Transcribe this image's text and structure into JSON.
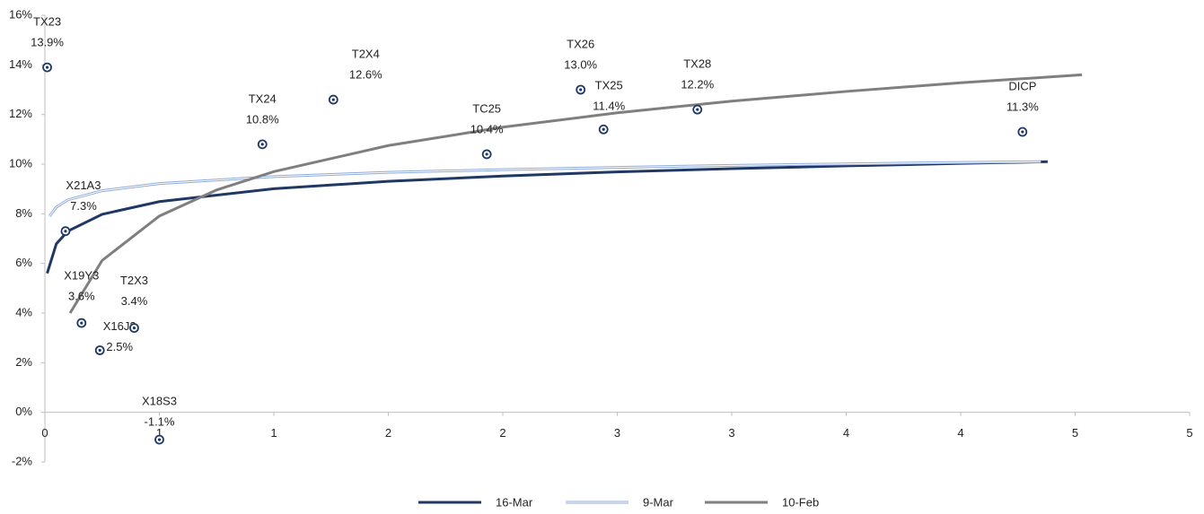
{
  "chart_data": {
    "type": "scatter",
    "xlim": [
      0,
      5
    ],
    "xticks": [
      0,
      {
        "value": 0.5,
        "label": "1"
      },
      1,
      {
        "value": 1.5,
        "label": "2"
      },
      2,
      {
        "value": 2.5,
        "label": "3"
      },
      3,
      {
        "value": 3.5,
        "label": "4"
      },
      4,
      {
        "value": 4.5,
        "label": "5"
      },
      5
    ],
    "ylim": [
      -2,
      16
    ],
    "yticks": [
      {
        "value": -2,
        "label": "-2%"
      },
      {
        "value": 0,
        "label": "0%"
      },
      {
        "value": 2,
        "label": "2%"
      },
      {
        "value": 4,
        "label": "4%"
      },
      {
        "value": 6,
        "label": "6%"
      },
      {
        "value": 8,
        "label": "8%"
      },
      {
        "value": 10,
        "label": "10%"
      },
      {
        "value": 12,
        "label": "12%"
      },
      {
        "value": 14,
        "label": "14%"
      },
      {
        "value": 16,
        "label": "16%"
      }
    ],
    "point_labels": [
      "TX23",
      "X21A3",
      "X19Y3",
      "X16J3",
      "T2X3",
      "X18S3",
      "TX24",
      "T2X4",
      "TC25",
      "TX26",
      "TX25",
      "TX28",
      "DICP"
    ],
    "point_x": [
      0.01,
      0.09,
      0.16,
      0.24,
      0.39,
      0.5,
      0.95,
      1.26,
      1.93,
      2.34,
      2.44,
      2.85,
      4.27
    ],
    "point_values": [
      13.9,
      7.3,
      3.6,
      2.5,
      3.4,
      -1.1,
      10.8,
      12.6,
      10.4,
      13.0,
      11.4,
      12.2,
      11.3
    ],
    "point_value_labels": [
      "13.9%",
      "7.3%",
      "3.6%",
      "2.5%",
      "3.4%",
      "-1.1%",
      "10.8%",
      "12.6%",
      "10.4%",
      "13.0%",
      "11.4%",
      "12.2%",
      "11.3%"
    ],
    "point_color": "#1f3864",
    "series": [
      {
        "name": "16-Mar",
        "color": "#1f3864",
        "x": [
          0.01,
          0.05,
          0.1,
          0.25,
          0.5,
          1,
          1.5,
          2,
          2.5,
          3,
          3.5,
          4,
          4.38
        ],
        "values": [
          5.6,
          6.79,
          7.3,
          7.98,
          8.49,
          9.01,
          9.31,
          9.52,
          9.69,
          9.82,
          9.93,
          10.03,
          10.1
        ]
      },
      {
        "name": "9-Mar",
        "color": "#8faadc",
        "x": [
          0.02,
          0.05,
          0.1,
          0.25,
          0.5,
          1,
          1.5,
          2,
          2.5,
          3,
          3.5,
          4,
          4.35
        ],
        "values": [
          7.9,
          8.27,
          8.56,
          8.93,
          9.22,
          9.5,
          9.67,
          9.78,
          9.87,
          9.95,
          10.01,
          10.07,
          10.1
        ]
      },
      {
        "name": "10-Feb",
        "color": "#7f7f7f",
        "x": [
          0.11,
          0.25,
          0.5,
          0.75,
          1,
          1.5,
          2,
          2.5,
          3,
          3.5,
          4,
          4.53
        ],
        "values": [
          4.0,
          6.12,
          7.91,
          8.96,
          9.7,
          10.75,
          11.49,
          12.07,
          12.54,
          12.93,
          13.28,
          13.6
        ]
      }
    ]
  }
}
